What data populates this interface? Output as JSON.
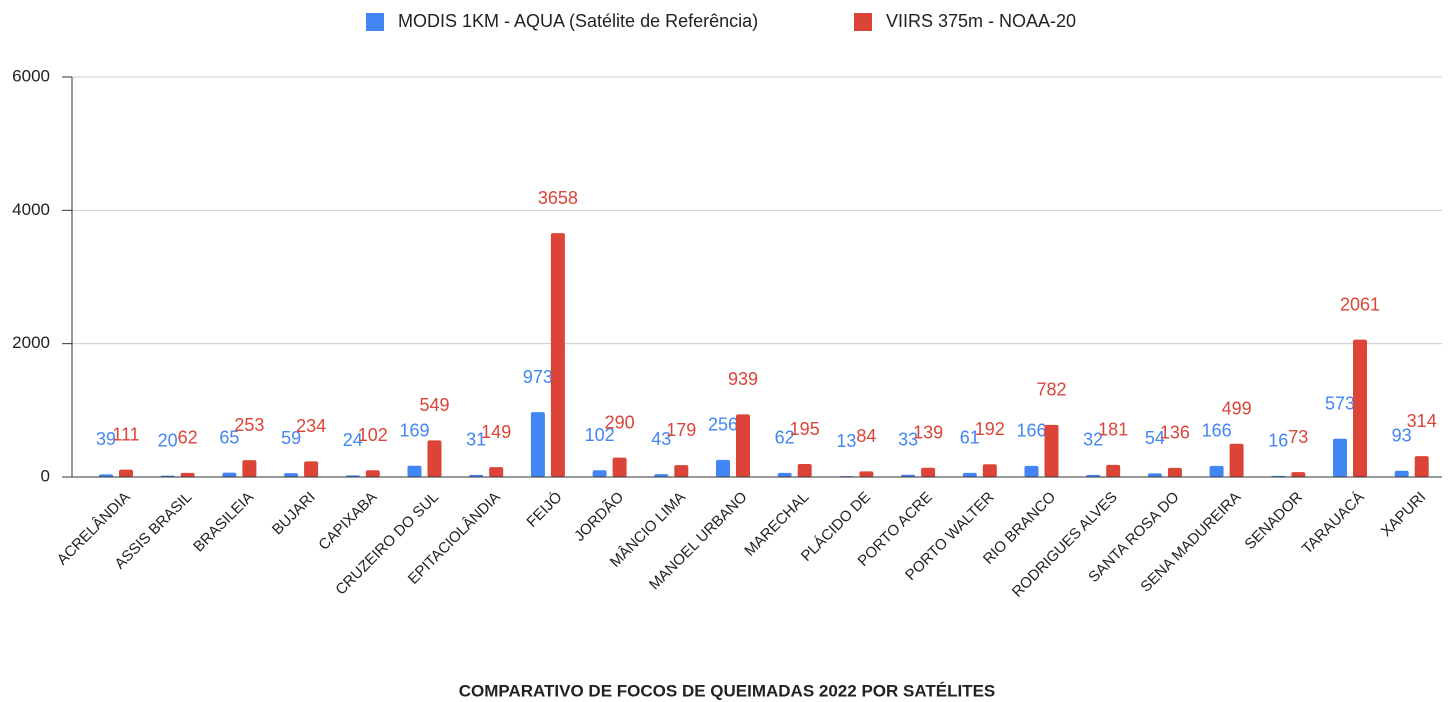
{
  "chart_data": {
    "type": "bar",
    "title": "COMPARATIVO  DE FOCOS DE QUEIMADAS 2022 POR SATÉLITES",
    "categories": [
      "ACRELÂNDIA",
      "ASSIS BRASIL",
      "BRASILEIA",
      "BUJARI",
      "CAPIXABA",
      "CRUZEIRO DO SUL",
      "EPITACIOLÂNDIA",
      "FEIJÓ",
      "JORDÃO",
      "MÂNCIO LIMA",
      "MANOEL URBANO",
      "MARECHAL",
      "PLÁCIDO DE",
      "PORTO ACRE",
      "PORTO WALTER",
      "RIO BRANCO",
      "RODRIGUES ALVES",
      "SANTA ROSA DO",
      "SENA MADUREIRA",
      "SENADOR",
      "TARAUACÁ",
      "XAPURI"
    ],
    "series": [
      {
        "name": "MODIS 1KM - AQUA (Satélite de Referência)",
        "color": "#4285f4",
        "values": [
          39,
          20,
          65,
          59,
          24,
          169,
          31,
          973,
          102,
          43,
          256,
          62,
          13,
          33,
          61,
          166,
          32,
          54,
          166,
          16,
          573,
          93
        ]
      },
      {
        "name": "VIIRS 375m - NOAA-20",
        "color": "#db4437",
        "values": [
          111,
          62,
          253,
          234,
          102,
          549,
          149,
          3658,
          290,
          179,
          939,
          195,
          84,
          139,
          192,
          782,
          181,
          136,
          499,
          73,
          2061,
          314
        ]
      }
    ],
    "ylim": [
      0,
      6000
    ],
    "yticks": [
      0,
      2000,
      4000,
      6000
    ],
    "grid": true,
    "legend": "top"
  }
}
